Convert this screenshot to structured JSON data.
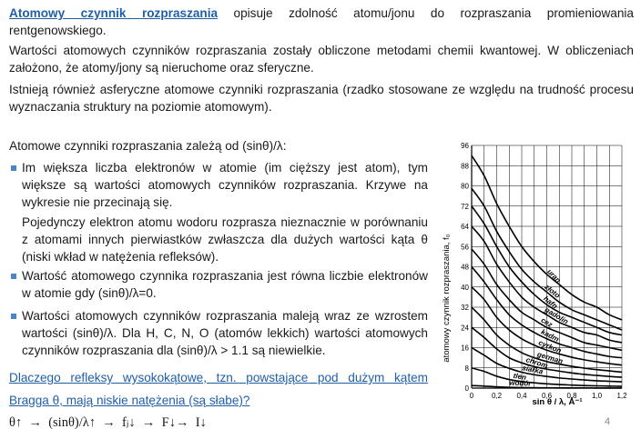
{
  "intro": {
    "term": "Atomowy czynnik rozpraszania",
    "rest": " opisuje zdolność atomu/jonu do rozpraszania promieniowania rentgenowskiego."
  },
  "para2": "Wartości atomowych czynników rozpraszania zostały obliczone metodami chemii kwantowej. W obliczeniach założono, że atomy/jony są nieruchome oraz sferyczne.",
  "para3": "Istnieją również asferyczne atomowe czynniki rozpraszania (rzadko stosowane ze względu na trudność procesu wyznaczania struktury na poziomie atomowym).",
  "depends": "Atomowe czynniki rozpraszania zależą od (sinθ)/λ:",
  "bullets": [
    "Im większa liczba elektronów w atomie (im cięższy jest atom), tym większe są wartości atomowych czynników rozpraszania. Krzywe na wykresie nie przecinają się.",
    "Wartość atomowego czynnika rozpraszania jest równa liczbie elektronów w atomie gdy (sinθ)/λ=0.",
    "Wartości atomowych czynników rozpraszania maleją wraz ze wzrostem wartości (sinθ)/λ. Dla H, C, N, O (atomów lekkich) wartości atomowych czynników rozpraszania dla (sinθ)/λ > 1.1 są niewielkie."
  ],
  "sub_para": "Pojedynczy elektron atomu wodoru rozprasza nieznacznie w porównaniu z atomami innych pierwiastków zwłaszcza dla dużych wartości kąta θ (niski wkład w natężenia refleksów).",
  "question_line1": "Dlaczego refleksy wysokokątowe, tzn. powstające pod dużym kątem",
  "question_line2": "Bragga θ, mają niskie natężenia (są słabe)?",
  "formula": "θ↑  →  (sinθ)/λ↑  →  fⱼ↓  →  F↓→  I↓",
  "page_number": "4",
  "chart_data": {
    "type": "line",
    "xlabel": "sin θ / λ, Å⁻¹",
    "ylabel": "atomowy czynnik rozpraszania, f₀",
    "x_ticks": [
      "0",
      "0,2",
      "0,4",
      "0,6",
      "0,8",
      "1,0",
      "1,2"
    ],
    "y_ticks": [
      "0",
      "8",
      "16",
      "24",
      "32",
      "40",
      "48",
      "56",
      "64",
      "72",
      "80",
      "88",
      "96"
    ],
    "xlim": [
      0,
      1.2
    ],
    "ylim": [
      0,
      96
    ],
    "x": [
      0,
      0.1,
      0.2,
      0.3,
      0.4,
      0.5,
      0.6,
      0.7,
      0.8,
      0.9,
      1.0,
      1.1,
      1.2
    ],
    "series": [
      {
        "name": "uran",
        "values": [
          92,
          84,
          73,
          64,
          56,
          50,
          45,
          41,
          37,
          34,
          32,
          29,
          27
        ]
      },
      {
        "name": "złoto",
        "values": [
          79,
          72,
          62,
          54,
          47,
          42,
          38,
          34,
          31,
          29,
          27,
          25,
          23
        ]
      },
      {
        "name": "hafn",
        "values": [
          72,
          65,
          56,
          48,
          42,
          37,
          33,
          30,
          28,
          26,
          24,
          22,
          21
        ]
      },
      {
        "name": "gadolin",
        "values": [
          64,
          58,
          49,
          42,
          36,
          32,
          29,
          26,
          24,
          22,
          21,
          19,
          18
        ]
      },
      {
        "name": "cez",
        "values": [
          55,
          49,
          41,
          35,
          30,
          27,
          24,
          22,
          20,
          18,
          17,
          16,
          15
        ]
      },
      {
        "name": "kadm",
        "values": [
          48,
          42,
          35,
          29,
          25,
          22,
          19.5,
          17.5,
          16,
          14.5,
          13.5,
          12.5,
          12
        ]
      },
      {
        "name": "cyrkon",
        "values": [
          40,
          35,
          28,
          23,
          19.5,
          17,
          15,
          13.5,
          12.2,
          11.2,
          10.4,
          9.7,
          9.1
        ]
      },
      {
        "name": "german",
        "values": [
          32,
          27,
          21,
          17,
          14,
          12,
          10.5,
          9.5,
          8.6,
          7.9,
          7.3,
          6.8,
          6.3
        ]
      },
      {
        "name": "chrom",
        "values": [
          24,
          20,
          15.5,
          12,
          10,
          8.5,
          7.5,
          6.7,
          6.0,
          5.4,
          5.0,
          4.6,
          4.3
        ]
      },
      {
        "name": "siarka",
        "values": [
          16,
          13,
          9.8,
          7.8,
          6.3,
          5.3,
          4.6,
          4.0,
          3.6,
          3.2,
          2.9,
          2.7,
          2.5
        ]
      },
      {
        "name": "tlen",
        "values": [
          8,
          6.6,
          4.7,
          3.4,
          2.6,
          2.1,
          1.7,
          1.4,
          1.2,
          1.0,
          0.9,
          0.8,
          0.7
        ]
      },
      {
        "name": "wodór",
        "values": [
          1,
          0.8,
          0.5,
          0.3,
          0.2,
          0.15,
          0.1,
          0.08,
          0.06,
          0.05,
          0.04,
          0.03,
          0.03
        ]
      }
    ]
  }
}
